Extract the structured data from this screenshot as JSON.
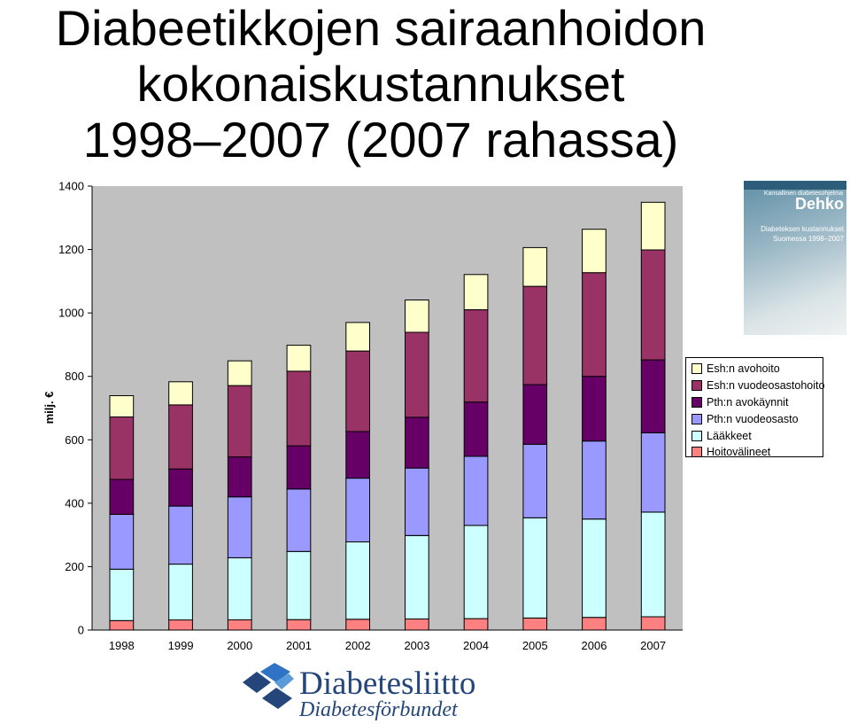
{
  "title": {
    "line1": "Diabeetikkojen sairaanhoidon",
    "line2": "kokonaiskustannukset",
    "line3": "1998–2007 (2007 rahassa)"
  },
  "chart_data": {
    "type": "bar",
    "stacked": true,
    "title": "",
    "xlabel": "",
    "ylabel": "milj. €",
    "ylim": [
      0,
      1400
    ],
    "yticks": [
      0,
      200,
      400,
      600,
      800,
      1000,
      1200,
      1400
    ],
    "grid": false,
    "legend_position": "right",
    "categories": [
      "1998",
      "1999",
      "2000",
      "2001",
      "2002",
      "2003",
      "2004",
      "2005",
      "2006",
      "2007"
    ],
    "series": [
      {
        "name": "Hoitovälineet",
        "color": "#ff8080",
        "values": [
          30,
          32,
          32,
          33,
          34,
          35,
          36,
          38,
          40,
          42
        ]
      },
      {
        "name": "Lääkkeet",
        "color": "#ccffff",
        "values": [
          162,
          176,
          196,
          215,
          244,
          263,
          294,
          316,
          310,
          330
        ]
      },
      {
        "name": "Pth:n vuodeosasto",
        "color": "#9999ff",
        "values": [
          173,
          183,
          192,
          197,
          201,
          213,
          218,
          232,
          246,
          250
        ]
      },
      {
        "name": "Pth:n avokäynnit",
        "color": "#660066",
        "values": [
          110,
          117,
          126,
          136,
          147,
          160,
          171,
          188,
          204,
          230
        ]
      },
      {
        "name": "Esh:n vuodeosastohoito",
        "color": "#993366",
        "values": [
          197,
          202,
          225,
          235,
          254,
          268,
          291,
          310,
          327,
          347
        ]
      },
      {
        "name": "Esh:n avohoito",
        "color": "#ffffcc",
        "values": [
          67,
          73,
          78,
          82,
          90,
          102,
          111,
          122,
          137,
          150
        ]
      }
    ]
  },
  "cover": {
    "program": "Kansallinen diabetesohjelma",
    "brand": "Dehko",
    "subtitle_line1": "Diabeteksen kustannukset",
    "subtitle_line2": "Suomessa 1998–2007"
  },
  "logo": {
    "name": "Diabetesliitto",
    "name_sv": "Diabetesförbundet"
  }
}
